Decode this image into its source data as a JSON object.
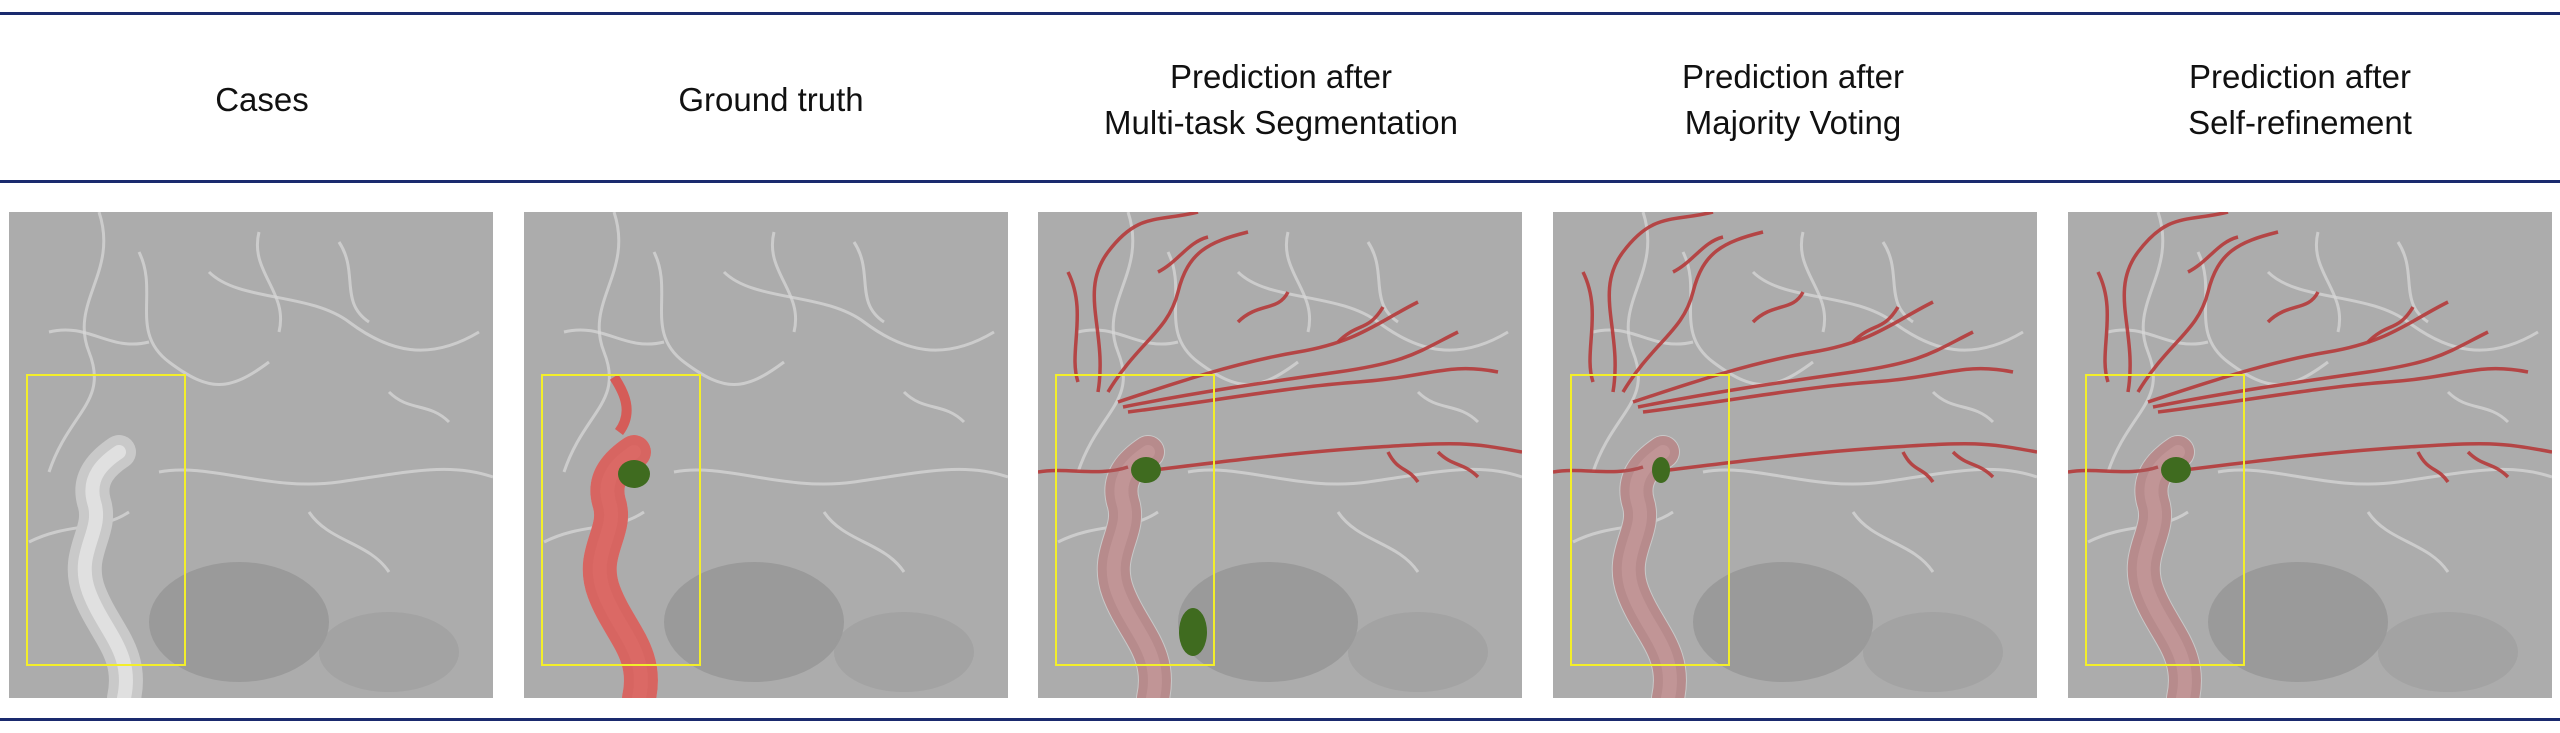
{
  "columns": [
    {
      "id": "cases",
      "lines": [
        "Cases"
      ],
      "overlay": "none"
    },
    {
      "id": "ground-truth",
      "lines": [
        "Ground truth"
      ],
      "overlay": "gt"
    },
    {
      "id": "multitask",
      "lines": [
        "Prediction after",
        "Multi-task Segmentation"
      ],
      "overlay": "pred-a"
    },
    {
      "id": "majority",
      "lines": [
        "Prediction after",
        "Majority Voting"
      ],
      "overlay": "pred-b"
    },
    {
      "id": "selfref",
      "lines": [
        "Prediction after",
        "Self-refinement"
      ],
      "overlay": "pred-c"
    }
  ],
  "colors": {
    "rule": "#1a2a6e",
    "roi_box": "#f3ee2a",
    "vessel_red": "#d9534f",
    "aneurysm_green": "#3f6b1f",
    "background_gray": "#a9a9a9"
  }
}
